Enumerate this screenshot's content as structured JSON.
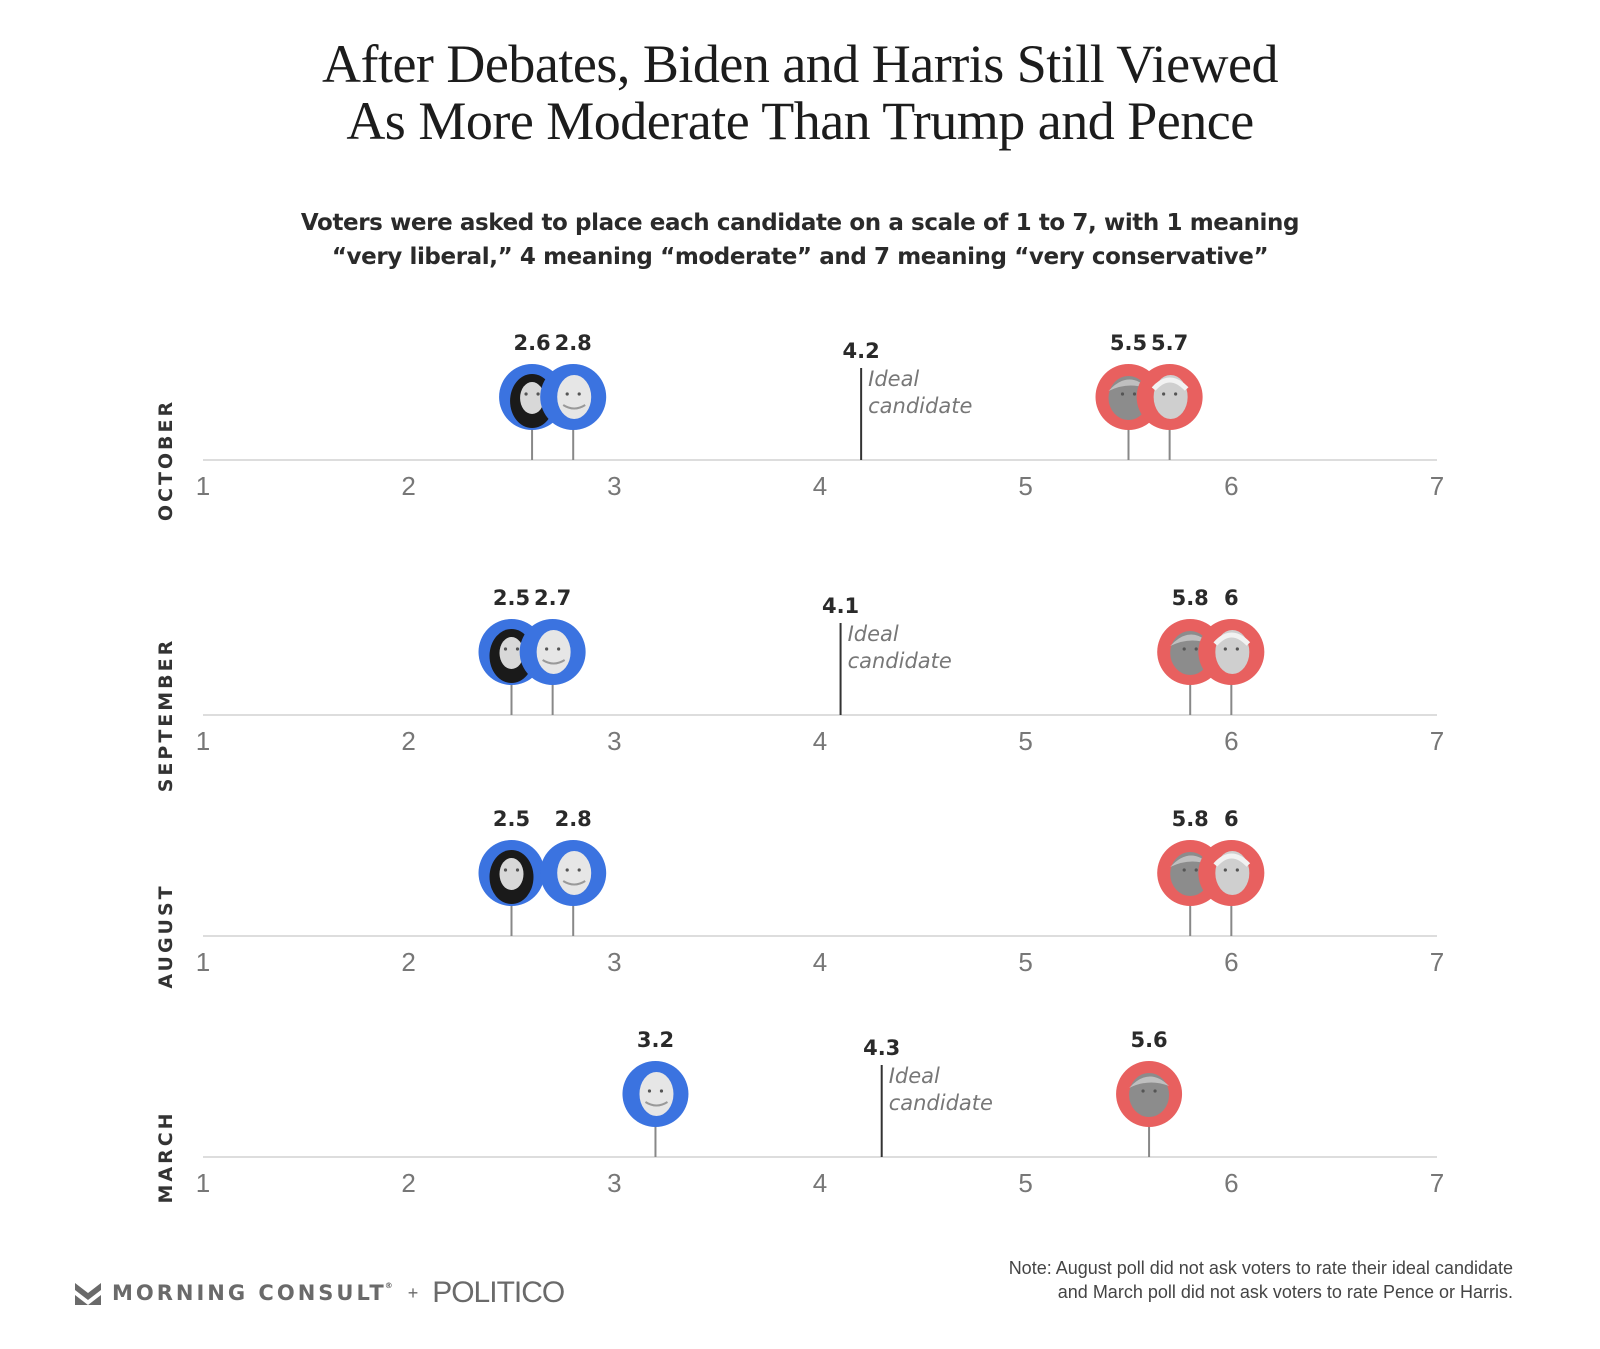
{
  "header": {
    "title_line1": "After Debates, Biden and Harris Still Viewed",
    "title_line2": "As More Moderate Than Trump and Pence",
    "subtitle_line1": "Voters were asked to place each candidate on a scale of 1 to 7, with 1 meaning",
    "subtitle_line2": "“very liberal,” 4 meaning “moderate” and 7 meaning “very conservative”"
  },
  "colors": {
    "democrat": "#3b73e0",
    "republican": "#e8605f",
    "axis": "#dddddd",
    "tick_text": "#777777",
    "value_text": "#2a2a2a",
    "ideal_text": "#777777"
  },
  "chart_data": {
    "type": "scatter",
    "title": "After Debates, Biden and Harris Still Viewed As More Moderate Than Trump and Pence",
    "xlim": [
      1,
      7
    ],
    "xticks": [
      "1",
      "2",
      "3",
      "4",
      "5",
      "6",
      "7"
    ],
    "ideal_label_line1": "Ideal",
    "ideal_label_line2": "candidate",
    "panels": [
      {
        "month": "OCTOBER",
        "ideal": {
          "value": 4.2,
          "label": "4.2"
        },
        "candidates": [
          {
            "name": "Harris",
            "party": "D",
            "value": 2.6,
            "label": "2.6"
          },
          {
            "name": "Biden",
            "party": "D",
            "value": 2.8,
            "label": "2.8"
          },
          {
            "name": "Trump",
            "party": "R",
            "value": 5.5,
            "label": "5.5"
          },
          {
            "name": "Pence",
            "party": "R",
            "value": 5.7,
            "label": "5.7"
          }
        ]
      },
      {
        "month": "SEPTEMBER",
        "ideal": {
          "value": 4.1,
          "label": "4.1"
        },
        "candidates": [
          {
            "name": "Harris",
            "party": "D",
            "value": 2.5,
            "label": "2.5"
          },
          {
            "name": "Biden",
            "party": "D",
            "value": 2.7,
            "label": "2.7"
          },
          {
            "name": "Trump",
            "party": "R",
            "value": 5.8,
            "label": "5.8"
          },
          {
            "name": "Pence",
            "party": "R",
            "value": 6,
            "label": "6"
          }
        ]
      },
      {
        "month": "AUGUST",
        "ideal": null,
        "candidates": [
          {
            "name": "Harris",
            "party": "D",
            "value": 2.5,
            "label": "2.5"
          },
          {
            "name": "Biden",
            "party": "D",
            "value": 2.8,
            "label": "2.8"
          },
          {
            "name": "Trump",
            "party": "R",
            "value": 5.8,
            "label": "5.8"
          },
          {
            "name": "Pence",
            "party": "R",
            "value": 6,
            "label": "6"
          }
        ]
      },
      {
        "month": "MARCH",
        "ideal": {
          "value": 4.3,
          "label": "4.3"
        },
        "candidates": [
          {
            "name": "Biden",
            "party": "D",
            "value": 3.2,
            "label": "3.2"
          },
          {
            "name": "Trump",
            "party": "R",
            "value": 5.6,
            "label": "5.6"
          }
        ]
      }
    ]
  },
  "footer": {
    "brand1": "MORNING CONSULT",
    "registered": "®",
    "plus": "+",
    "brand2": "POLITICO",
    "note_line1": "Note: August poll did not ask voters to rate their ideal candidate",
    "note_line2": "and March poll did not ask voters to rate Pence or Harris."
  }
}
